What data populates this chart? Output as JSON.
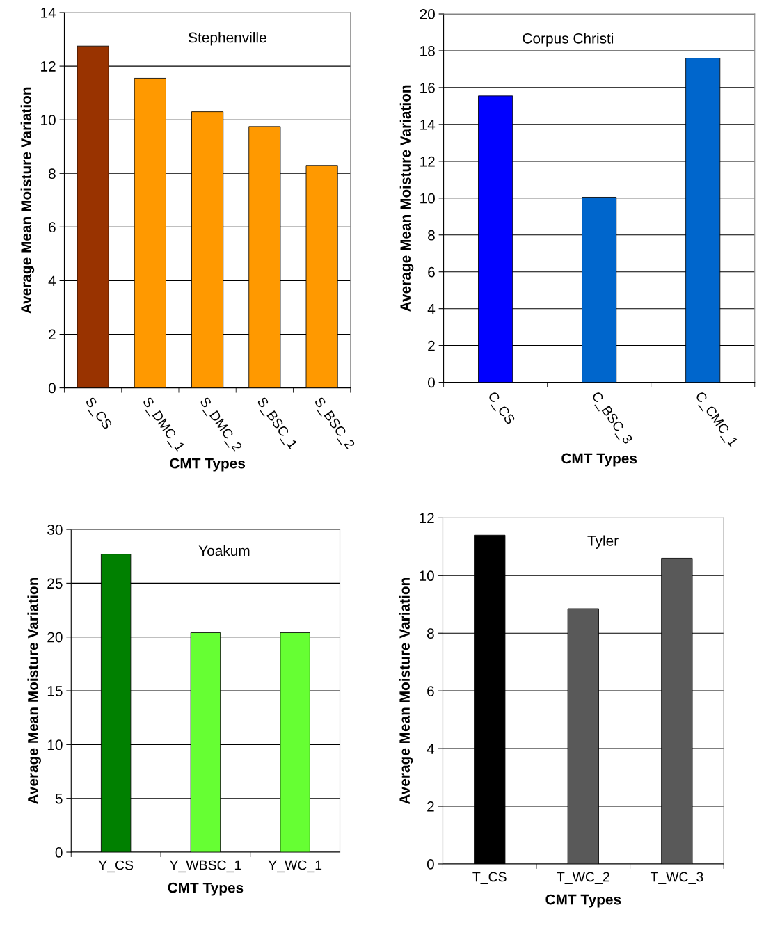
{
  "chart_data": [
    {
      "type": "bar",
      "title": "Stephenville",
      "xlabel": "CMT Types",
      "ylabel": "Average Mean Moisture Variation",
      "categories": [
        "S_CS",
        "S_DMC_1",
        "S_DMC_2",
        "S_BSC_1",
        "S_BSC_2"
      ],
      "values": [
        12.75,
        11.55,
        10.3,
        9.75,
        8.3
      ],
      "colors": [
        "#993300",
        "#ff9900",
        "#ff9900",
        "#ff9900",
        "#ff9900"
      ],
      "ylim": [
        0,
        14
      ],
      "yticks": [
        0,
        2,
        4,
        6,
        8,
        10,
        12,
        14
      ],
      "grid": "y"
    },
    {
      "type": "bar",
      "title": "Corpus Christi",
      "xlabel": "CMT Types",
      "ylabel": "Average Mean Moisture Variation",
      "categories": [
        "C_CS",
        "C_BSC_3",
        "C_CMC_1"
      ],
      "values": [
        15.55,
        10.05,
        17.6
      ],
      "colors": [
        "#0000ff",
        "#0066cc",
        "#0066cc"
      ],
      "ylim": [
        0,
        20
      ],
      "yticks": [
        0,
        2,
        4,
        6,
        8,
        10,
        12,
        14,
        16,
        18,
        20
      ],
      "grid": "y"
    },
    {
      "type": "bar",
      "title": "Yoakum",
      "xlabel": "CMT Types",
      "ylabel": "Average Mean Moisture Variation",
      "categories": [
        "Y_CS",
        "Y_WBSC_1",
        "Y_WC_1"
      ],
      "values": [
        27.7,
        20.4,
        20.4
      ],
      "colors": [
        "#008000",
        "#66ff33",
        "#66ff33"
      ],
      "ylim": [
        0,
        30
      ],
      "yticks": [
        0,
        5,
        10,
        15,
        20,
        25,
        30
      ],
      "grid": "y"
    },
    {
      "type": "bar",
      "title": "Tyler",
      "xlabel": "CMT Types",
      "ylabel": "Average Mean Moisture Variation",
      "categories": [
        "T_CS",
        "T_WC_2",
        "T_WC_3"
      ],
      "values": [
        11.4,
        8.85,
        10.6
      ],
      "colors": [
        "#000000",
        "#595959",
        "#595959"
      ],
      "ylim": [
        0,
        12
      ],
      "yticks": [
        0,
        2,
        4,
        6,
        8,
        10,
        12
      ],
      "grid": "y"
    }
  ]
}
